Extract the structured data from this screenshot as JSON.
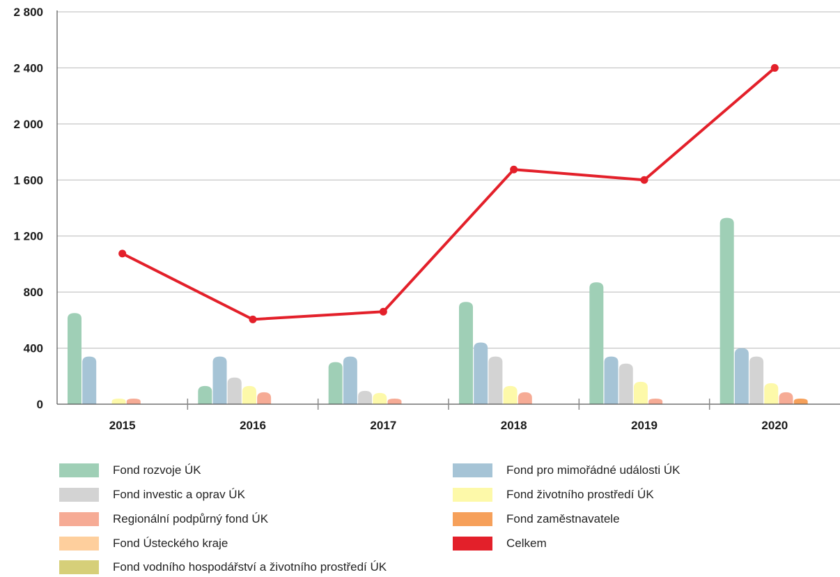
{
  "chart_data": {
    "type": "bar",
    "categories": [
      "2015",
      "2016",
      "2017",
      "2018",
      "2019",
      "2020"
    ],
    "ylim": [
      0,
      2800
    ],
    "yticks": [
      "0",
      "400",
      "800",
      "1 200",
      "1 600",
      "2 000",
      "2 400",
      "2 800"
    ],
    "ytick_values": [
      0,
      400,
      800,
      1200,
      1600,
      2000,
      2400,
      2800
    ],
    "grid": true,
    "legend_position": "bottom",
    "series": [
      {
        "name": "Fond rozvoje ÚK",
        "color": "#9fcfb6",
        "values": [
          650,
          130,
          300,
          730,
          870,
          1330
        ]
      },
      {
        "name": "Fond pro mimořádné události ÚK",
        "color": "#a6c4d6",
        "values": [
          340,
          340,
          340,
          440,
          340,
          400
        ]
      },
      {
        "name": "Fond investic a oprav ÚK",
        "color": "#d3d3d3",
        "values": [
          0,
          190,
          95,
          340,
          290,
          340
        ]
      },
      {
        "name": "Fond životního prostředí ÚK",
        "color": "#fdf9a9",
        "values": [
          40,
          130,
          80,
          130,
          160,
          150
        ]
      },
      {
        "name": "Regionální podpůrný fond ÚK",
        "color": "#f6ab95",
        "values": [
          40,
          85,
          40,
          85,
          40,
          85
        ]
      },
      {
        "name": "Fond zaměstnavatele",
        "color": "#f6a05a",
        "values": [
          0,
          0,
          0,
          0,
          0,
          40
        ]
      },
      {
        "name": "Fond Ústeckého kraje",
        "color": "#fecf9d",
        "values": [
          0,
          0,
          0,
          0,
          0,
          0
        ]
      },
      {
        "name": "Fond vodního hospodářství a životního prostředí ÚK",
        "color": "#d6cf79",
        "values": [
          0,
          0,
          0,
          0,
          0,
          0
        ]
      },
      {
        "name": "Celkem",
        "color": "#e3202a",
        "type": "line",
        "values": [
          1075,
          605,
          660,
          1675,
          1600,
          2400
        ]
      }
    ]
  },
  "legend": [
    {
      "label": "Fond rozvoje ÚK",
      "color": "#9fcfb6"
    },
    {
      "label": "Fond pro mimořádné události ÚK",
      "color": "#a6c4d6"
    },
    {
      "label": "Fond investic a oprav ÚK",
      "color": "#d3d3d3"
    },
    {
      "label": "Fond životního prostředí ÚK",
      "color": "#fdf9a9"
    },
    {
      "label": "Regionální podpůrný fond ÚK",
      "color": "#f6ab95"
    },
    {
      "label": "Fond zaměstnavatele",
      "color": "#f6a05a"
    },
    {
      "label": "Fond Ústeckého kraje",
      "color": "#fecf9d"
    },
    {
      "label": "Celkem",
      "color": "#e3202a"
    },
    {
      "label": "Fond vodního hospodářství a životního prostředí ÚK",
      "color": "#d6cf79"
    }
  ]
}
